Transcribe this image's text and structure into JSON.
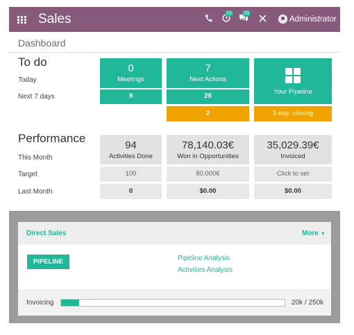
{
  "navbar": {
    "title": "Sales",
    "badge_activities": "13",
    "badge_messages": "23",
    "user": "Administrator"
  },
  "breadcrumb": "Dashboard",
  "todo": {
    "title": "To do",
    "today_label": "Today",
    "next7_label": "Next 7 days",
    "meetings": {
      "count": "0",
      "label": "Meetings",
      "next": "9"
    },
    "next_actions": {
      "count": "7",
      "label": "Next Actions",
      "next": "28",
      "overdue": "2"
    },
    "pipeline": {
      "label": "Your Pipeline",
      "closing": "3 exp. closing"
    }
  },
  "performance": {
    "title": "Performance",
    "this_month_label": "This Month",
    "target_label": "Target",
    "last_month_label": "Last Month",
    "activities": {
      "value": "94",
      "label": "Activities Done",
      "target": "100",
      "last": "0"
    },
    "won": {
      "value": "78,140.03€",
      "label": "Won in Opportunities",
      "target": "80.000€",
      "last": "$0.00"
    },
    "invoiced": {
      "value": "35,029.39€",
      "label": "Invoiced",
      "target": "Click to set",
      "last": "$0.00"
    }
  },
  "team": {
    "name": "Direct Sales",
    "more": "More",
    "pipeline_button": "PIPELINE",
    "links": [
      "Pipeline Analysis",
      "Activities Analysis"
    ],
    "invoicing_label": "Invoicing",
    "invoicing_value": "20k / 250k",
    "invoicing_progress": 0.08
  },
  "colors": {
    "navbar": "#875a7b",
    "teal": "#21b799",
    "orange": "#f0a200"
  }
}
